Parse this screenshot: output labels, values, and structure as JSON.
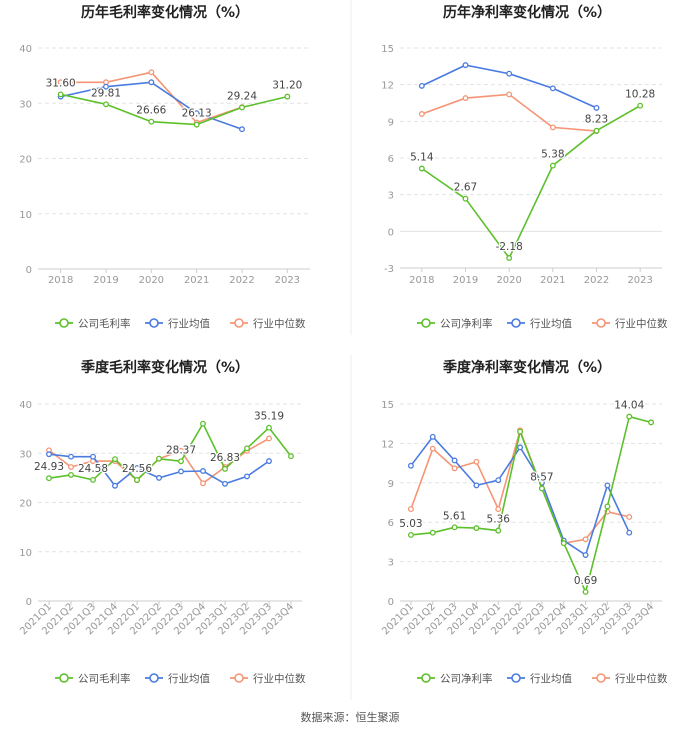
{
  "colors": {
    "company": "#5cc02a",
    "industry_avg": "#4a7be0",
    "industry_median": "#f59575",
    "grid": "#e3e3e3",
    "axis": "#999999",
    "label": "#444444",
    "title": "#222222"
  },
  "source": "数据来源：恒生聚源",
  "chart_data": [
    {
      "type": "line",
      "title": "历年毛利率变化情况（%）",
      "categories": [
        "2018",
        "2019",
        "2020",
        "2021",
        "2022",
        "2023"
      ],
      "ylim": [
        0,
        40
      ],
      "yticks": [
        0,
        10,
        20,
        30,
        40
      ],
      "grid": true,
      "legend": "bottom",
      "series": [
        {
          "name": "公司毛利率",
          "key": "company",
          "values": [
            31.6,
            29.81,
            26.66,
            26.13,
            29.24,
            31.2
          ]
        },
        {
          "name": "行业均值",
          "key": "industry_avg",
          "values": [
            31.2,
            33.0,
            33.8,
            28.2,
            25.3,
            null
          ]
        },
        {
          "name": "行业中位数",
          "key": "industry_median",
          "values": [
            33.8,
            33.8,
            35.6,
            26.5,
            29.3,
            null
          ]
        }
      ],
      "data_labels": [
        {
          "series": 0,
          "index": 0,
          "text": "31.60"
        },
        {
          "series": 0,
          "index": 1,
          "text": "29.81"
        },
        {
          "series": 0,
          "index": 2,
          "text": "26.66"
        },
        {
          "series": 0,
          "index": 3,
          "text": "26.13"
        },
        {
          "series": 0,
          "index": 4,
          "text": "29.24"
        },
        {
          "series": 0,
          "index": 5,
          "text": "31.20"
        }
      ]
    },
    {
      "type": "line",
      "title": "历年净利率变化情况（%）",
      "categories": [
        "2018",
        "2019",
        "2020",
        "2021",
        "2022",
        "2023"
      ],
      "ylim": [
        -3,
        15
      ],
      "yticks": [
        -3,
        0,
        3,
        6,
        9,
        12,
        15
      ],
      "grid": true,
      "legend": "bottom",
      "series": [
        {
          "name": "公司净利率",
          "key": "company",
          "values": [
            5.14,
            2.67,
            -2.18,
            5.38,
            8.23,
            10.28
          ]
        },
        {
          "name": "行业均值",
          "key": "industry_avg",
          "values": [
            11.9,
            13.6,
            12.9,
            11.7,
            10.1,
            null
          ]
        },
        {
          "name": "行业中位数",
          "key": "industry_median",
          "values": [
            9.6,
            10.9,
            11.2,
            8.5,
            8.2,
            null
          ]
        }
      ],
      "data_labels": [
        {
          "series": 0,
          "index": 0,
          "text": "5.14"
        },
        {
          "series": 0,
          "index": 1,
          "text": "2.67"
        },
        {
          "series": 0,
          "index": 2,
          "text": "-2.18"
        },
        {
          "series": 0,
          "index": 3,
          "text": "5.38"
        },
        {
          "series": 0,
          "index": 4,
          "text": "8.23"
        },
        {
          "series": 0,
          "index": 5,
          "text": "10.28"
        }
      ]
    },
    {
      "type": "line",
      "title": "季度毛利率变化情况（%）",
      "categories": [
        "2021Q1",
        "2021Q2",
        "2021Q3",
        "2021Q4",
        "2022Q1",
        "2022Q2",
        "2022Q3",
        "2022Q4",
        "2023Q1",
        "2023Q2",
        "2023Q3",
        "2023Q4"
      ],
      "ylim": [
        0,
        40
      ],
      "yticks": [
        0,
        10,
        20,
        30,
        40
      ],
      "grid": true,
      "legend": "bottom",
      "series": [
        {
          "name": "公司毛利率",
          "key": "company",
          "values": [
            24.93,
            25.6,
            24.58,
            28.8,
            24.56,
            28.9,
            28.37,
            36.0,
            26.83,
            31.0,
            35.19,
            29.4
          ]
        },
        {
          "name": "行业均值",
          "key": "industry_avg",
          "values": [
            29.8,
            29.3,
            29.3,
            23.4,
            27.0,
            25.0,
            26.3,
            26.4,
            23.8,
            25.3,
            28.4,
            null
          ]
        },
        {
          "name": "行业中位数",
          "key": "industry_median",
          "values": [
            30.6,
            27.2,
            28.4,
            28.4,
            24.5,
            28.9,
            30.5,
            23.9,
            27.2,
            30.5,
            33.0,
            null
          ]
        }
      ],
      "data_labels": [
        {
          "series": 0,
          "index": 0,
          "text": "24.93"
        },
        {
          "series": 0,
          "index": 2,
          "text": "24.58"
        },
        {
          "series": 0,
          "index": 4,
          "text": "24.56"
        },
        {
          "series": 0,
          "index": 6,
          "text": "28.37"
        },
        {
          "series": 0,
          "index": 8,
          "text": "26.83"
        },
        {
          "series": 0,
          "index": 10,
          "text": "35.19"
        }
      ]
    },
    {
      "type": "line",
      "title": "季度净利率变化情况（%）",
      "categories": [
        "2021Q1",
        "2021Q2",
        "2021Q3",
        "2021Q4",
        "2022Q1",
        "2022Q2",
        "2022Q3",
        "2022Q4",
        "2023Q1",
        "2023Q2",
        "2023Q3",
        "2023Q4"
      ],
      "ylim": [
        0,
        15
      ],
      "yticks": [
        0,
        3,
        6,
        9,
        12,
        15
      ],
      "grid": true,
      "legend": "bottom",
      "series": [
        {
          "name": "公司净利率",
          "key": "company",
          "values": [
            5.03,
            5.2,
            5.61,
            5.55,
            5.36,
            12.9,
            8.57,
            4.4,
            0.69,
            7.2,
            14.04,
            13.6
          ]
        },
        {
          "name": "行业均值",
          "key": "industry_avg",
          "values": [
            10.3,
            12.5,
            10.7,
            8.8,
            9.2,
            11.7,
            9.0,
            4.6,
            3.5,
            8.8,
            5.2,
            null
          ]
        },
        {
          "name": "行业中位数",
          "key": "industry_median",
          "values": [
            7.0,
            11.6,
            10.1,
            10.6,
            7.0,
            13.0,
            8.6,
            4.4,
            4.7,
            6.8,
            6.4,
            null
          ]
        }
      ],
      "data_labels": [
        {
          "series": 0,
          "index": 0,
          "text": "5.03"
        },
        {
          "series": 0,
          "index": 2,
          "text": "5.61"
        },
        {
          "series": 0,
          "index": 4,
          "text": "5.36"
        },
        {
          "series": 0,
          "index": 6,
          "text": "8.57"
        },
        {
          "series": 0,
          "index": 8,
          "text": "0.69"
        },
        {
          "series": 0,
          "index": 10,
          "text": "14.04"
        }
      ]
    }
  ]
}
